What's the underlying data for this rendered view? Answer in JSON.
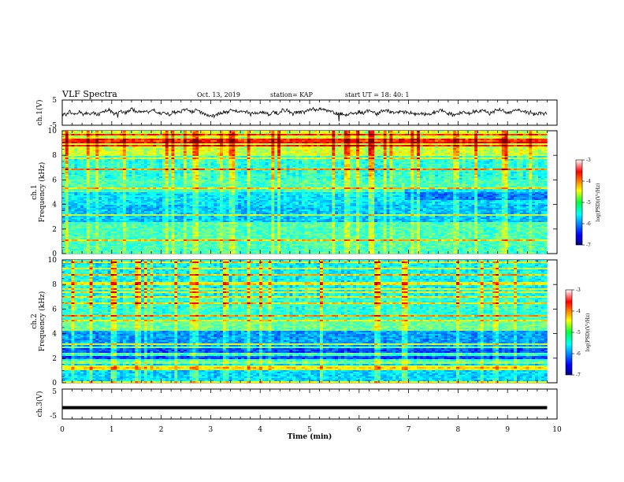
{
  "header": {
    "title": "VLF Spectra",
    "date": "Oct. 13, 2019",
    "station": "station= KAP",
    "start": "start  UT =   18: 40: 1"
  },
  "chart_data": [
    {
      "type": "line",
      "panel": "ch1-waveform",
      "ylabel": "ch.1(V)",
      "ylim": [
        -5,
        5
      ],
      "yticks": [
        "5",
        "-5"
      ],
      "xlim": [
        0,
        10
      ],
      "note_values": "noisy waveform fluctuating around ~0 V, roughly within -2..+2 V"
    },
    {
      "type": "heatmap",
      "panel": "ch1-spectrogram",
      "ylabel_line1": "ch.1",
      "ylabel_line2": "Frequency (kHz)",
      "yticks": [
        "0",
        "2",
        "4",
        "6",
        "8",
        "10"
      ],
      "ylim": [
        0,
        10
      ],
      "xlim": [
        0,
        9.8
      ],
      "colorbar": {
        "label": "log(PSD)(V²/Hz)",
        "range": [
          -7,
          -3
        ],
        "ticks": [
          "-3",
          "-4",
          "-5",
          "-6",
          "-7"
        ]
      }
    },
    {
      "type": "heatmap",
      "panel": "ch2-spectrogram",
      "ylabel_line1": "ch.2",
      "ylabel_line2": "Frequency (kHz)",
      "yticks": [
        "0",
        "2",
        "4",
        "6",
        "8",
        "10"
      ],
      "ylim": [
        0,
        10
      ],
      "xlim": [
        0,
        9.8
      ],
      "colorbar": {
        "label": "log(PSD)(V²/Hz)",
        "range": [
          -7,
          -3
        ],
        "ticks": [
          "-3",
          "-4",
          "-5",
          "-6",
          "-7"
        ]
      }
    },
    {
      "type": "line",
      "panel": "ch3-waveform",
      "ylabel": "ch.3(V)",
      "ylim": [
        -5,
        5
      ],
      "yticks": [
        "5",
        "-5"
      ],
      "xlim": [
        0,
        10
      ],
      "level": -1.2
    }
  ],
  "xaxis": {
    "label": "Time (min)",
    "ticks": [
      "0",
      "1",
      "2",
      "3",
      "4",
      "5",
      "6",
      "7",
      "8",
      "9",
      "10"
    ]
  }
}
